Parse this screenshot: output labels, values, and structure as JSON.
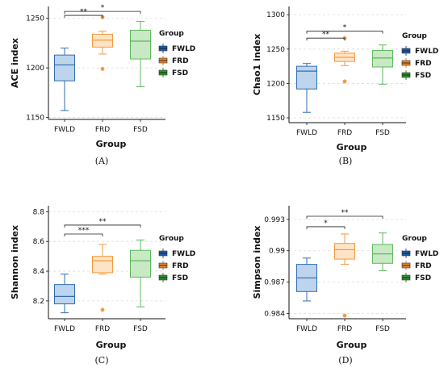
{
  "colors": {
    "FWLD": {
      "stroke": "#2f6db3",
      "fill": "#bcd5ec",
      "legend": "#1f5ea8"
    },
    "FRD": {
      "stroke": "#f39a3c",
      "fill": "#fde4c6",
      "legend": "#e8862a"
    },
    "FSD": {
      "stroke": "#5cb85c",
      "fill": "#c9e8c4",
      "legend": "#2f8f2f"
    },
    "outlier": "#f39a3c",
    "grid": "#dddddd"
  },
  "chart_data": [
    {
      "type": "box",
      "panel_label": "(A)",
      "xlabel": "Group",
      "ylabel": "ACE index",
      "ylim": [
        1148,
        1262
      ],
      "yticks": [
        1150,
        1200,
        1250
      ],
      "categories": [
        "FWLD",
        "FRD",
        "FSD"
      ],
      "legend": {
        "title": "Group",
        "entries": [
          "FWLD",
          "FRD",
          "FSD"
        ],
        "placement": "right"
      },
      "boxes": [
        {
          "group": "FWLD",
          "whisker_low": 1157,
          "q1": 1187,
          "median": 1203,
          "q3": 1213,
          "whisker_high": 1220,
          "outliers": []
        },
        {
          "group": "FRD",
          "whisker_low": 1214,
          "q1": 1221,
          "median": 1228,
          "q3": 1234,
          "whisker_high": 1237,
          "outliers": [
            1199,
            1251
          ]
        },
        {
          "group": "FSD",
          "whisker_low": 1181,
          "q1": 1209,
          "median": 1227,
          "q3": 1238,
          "whisker_high": 1247,
          "outliers": []
        }
      ],
      "significance": [
        {
          "from": "FWLD",
          "to": "FRD",
          "label": "**",
          "y": 1253
        },
        {
          "from": "FWLD",
          "to": "FSD",
          "label": "*",
          "y": 1257
        }
      ]
    },
    {
      "type": "box",
      "panel_label": "(B)",
      "xlabel": "Group",
      "ylabel": "Chao1 index",
      "ylim": [
        1143,
        1312
      ],
      "yticks": [
        1150,
        1200,
        1250,
        1300
      ],
      "categories": [
        "FWLD",
        "FRD",
        "FSD"
      ],
      "legend": {
        "title": "Group",
        "entries": [
          "FWLD",
          "FRD",
          "FSD"
        ],
        "placement": "right"
      },
      "boxes": [
        {
          "group": "FWLD",
          "whisker_low": 1158,
          "q1": 1192,
          "median": 1218,
          "q3": 1225,
          "whisker_high": 1229,
          "outliers": []
        },
        {
          "group": "FRD",
          "whisker_low": 1226,
          "q1": 1232,
          "median": 1238,
          "q3": 1244,
          "whisker_high": 1247,
          "outliers": [
            1203,
            1266
          ]
        },
        {
          "group": "FSD",
          "whisker_low": 1199,
          "q1": 1224,
          "median": 1237,
          "q3": 1248,
          "whisker_high": 1256,
          "outliers": []
        }
      ],
      "significance": [
        {
          "from": "FWLD",
          "to": "FRD",
          "label": "**",
          "y": 1266
        },
        {
          "from": "FWLD",
          "to": "FSD",
          "label": "*",
          "y": 1276
        }
      ]
    },
    {
      "type": "box",
      "panel_label": "(C)",
      "xlabel": "Group",
      "ylabel": "Shannon index",
      "ylim": [
        8.08,
        8.84
      ],
      "yticks": [
        8.2,
        8.4,
        8.6,
        8.8
      ],
      "categories": [
        "FWLD",
        "FRD",
        "FSD"
      ],
      "legend": {
        "title": "Group",
        "entries": [
          "FWLD",
          "FRD",
          "FSD"
        ],
        "placement": "right"
      },
      "boxes": [
        {
          "group": "FWLD",
          "whisker_low": 8.12,
          "q1": 8.18,
          "median": 8.23,
          "q3": 8.31,
          "whisker_high": 8.38,
          "outliers": []
        },
        {
          "group": "FRD",
          "whisker_low": 8.38,
          "q1": 8.39,
          "median": 8.47,
          "q3": 8.5,
          "whisker_high": 8.58,
          "outliers": [
            8.14
          ]
        },
        {
          "group": "FSD",
          "whisker_low": 8.16,
          "q1": 8.36,
          "median": 8.47,
          "q3": 8.54,
          "whisker_high": 8.61,
          "outliers": []
        }
      ],
      "significance": [
        {
          "from": "FWLD",
          "to": "FRD",
          "label": "***",
          "y": 8.65
        },
        {
          "from": "FWLD",
          "to": "FSD",
          "label": "**",
          "y": 8.71
        }
      ]
    },
    {
      "type": "box",
      "panel_label": "(D)",
      "xlabel": "Group",
      "ylabel": "Simpson index",
      "ylim": [
        0.9835,
        0.9943
      ],
      "yticks": [
        0.984,
        0.987,
        0.99,
        0.993
      ],
      "ytick_labels": [
        "0.984",
        "0.987",
        "0.99",
        "0.993"
      ],
      "categories": [
        "FWLD",
        "FRD",
        "FSD"
      ],
      "legend": {
        "title": "Group",
        "entries": [
          "FWLD",
          "FRD",
          "FSD"
        ],
        "placement": "right"
      },
      "boxes": [
        {
          "group": "FWLD",
          "whisker_low": 0.9852,
          "q1": 0.9861,
          "median": 0.9874,
          "q3": 0.9887,
          "whisker_high": 0.9893,
          "outliers": []
        },
        {
          "group": "FRD",
          "whisker_low": 0.9887,
          "q1": 0.9892,
          "median": 0.9901,
          "q3": 0.9907,
          "whisker_high": 0.9916,
          "outliers": [
            0.9838
          ]
        },
        {
          "group": "FSD",
          "whisker_low": 0.9881,
          "q1": 0.9888,
          "median": 0.9897,
          "q3": 0.9906,
          "whisker_high": 0.9917,
          "outliers": []
        }
      ],
      "significance": [
        {
          "from": "FWLD",
          "to": "FRD",
          "label": "*",
          "y": 0.9923
        },
        {
          "from": "FWLD",
          "to": "FSD",
          "label": "**",
          "y": 0.9933
        }
      ]
    }
  ]
}
